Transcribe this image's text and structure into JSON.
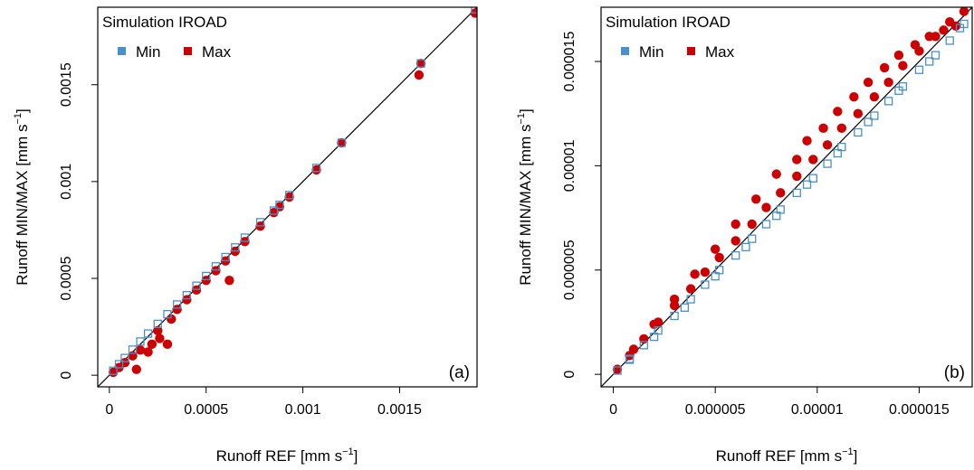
{
  "colors": {
    "min": "#4A90C8",
    "max": "#CC0000",
    "line": "#000000",
    "frame": "#000000"
  },
  "chart_data": [
    {
      "type": "scatter",
      "panel_label": "(a)",
      "legend": {
        "title": "Simulation IROAD",
        "items": [
          "Min",
          "Max"
        ],
        "placement": "top-left"
      },
      "xlabel": "Runoff REF [mm s",
      "ylabel": "Runoff MIN/MAX [mm s",
      "unit_exponent": "−1",
      "xlim": [
        -6e-05,
        0.0019
      ],
      "ylim": [
        -6e-05,
        0.0019
      ],
      "xticks": [
        {
          "value": 0,
          "label": "0"
        },
        {
          "value": 0.0005,
          "label": "0.0005"
        },
        {
          "value": 0.001,
          "label": "0.001"
        },
        {
          "value": 0.0015,
          "label": "0.0015"
        }
      ],
      "yticks": [
        {
          "value": 0,
          "label": "0"
        },
        {
          "value": 0.0005,
          "label": "0.0005"
        },
        {
          "value": 0.001,
          "label": "0.001"
        },
        {
          "value": 0.0015,
          "label": "0.0015"
        }
      ],
      "identity_line": true,
      "series": [
        {
          "name": "Min",
          "x": [
            2e-05,
            5e-05,
            8e-05,
            0.00012,
            0.00016,
            0.0002,
            0.00025,
            0.0003,
            0.00035,
            0.0004,
            0.00045,
            0.0005,
            0.00055,
            0.0006,
            0.00065,
            0.0007,
            0.00078,
            0.00085,
            0.00088,
            0.00093,
            0.00107,
            0.0012,
            0.00161,
            0.00189
          ],
          "y": [
            2.3e-05,
            5.7e-05,
            8.9e-05,
            0.000132,
            0.000174,
            0.000215,
            0.000265,
            0.000315,
            0.000365,
            0.000413,
            0.000462,
            0.000512,
            0.000562,
            0.00061,
            0.00066,
            0.00071,
            0.00079,
            0.00085,
            0.00088,
            0.00093,
            0.00107,
            0.0012,
            0.00161,
            0.00189
          ]
        },
        {
          "name": "Max",
          "x": [
            2e-05,
            5e-05,
            8e-05,
            0.00012,
            0.00014,
            0.00016,
            0.0002,
            0.00022,
            0.00025,
            0.00026,
            0.0003,
            0.00032,
            0.00035,
            0.0004,
            0.00045,
            0.0005,
            0.00055,
            0.0006,
            0.00062,
            0.00065,
            0.0007,
            0.00078,
            0.00085,
            0.00088,
            0.00093,
            0.00107,
            0.0012,
            0.0016,
            0.00161,
            0.00189
          ],
          "y": [
            1.5e-05,
            4e-05,
            6.5e-05,
            0.0001,
            3e-05,
            0.00013,
            0.00012,
            0.00016,
            0.00023,
            0.00019,
            0.00016,
            0.00029,
            0.00034,
            0.00039,
            0.00044,
            0.00049,
            0.00054,
            0.00059,
            0.00049,
            0.00064,
            0.00069,
            0.00077,
            0.00084,
            0.00087,
            0.00092,
            0.00106,
            0.0012,
            0.00155,
            0.00161,
            0.00187
          ]
        }
      ]
    },
    {
      "type": "scatter",
      "panel_label": "(b)",
      "legend": {
        "title": "Simulation IROAD",
        "items": [
          "Min",
          "Max"
        ],
        "placement": "top-left"
      },
      "xlabel": "Runoff REF [mm s",
      "ylabel": "Runoff MIN/MAX [mm s",
      "unit_exponent": "−1",
      "xlim": [
        -6e-07,
        1.76e-05
      ],
      "ylim": [
        -6e-07,
        1.76e-05
      ],
      "xticks": [
        {
          "value": 0,
          "label": "0"
        },
        {
          "value": 5e-06,
          "label": "0.000005"
        },
        {
          "value": 1e-05,
          "label": "0.00001"
        },
        {
          "value": 1.5e-05,
          "label": "0.000015"
        }
      ],
      "yticks": [
        {
          "value": 0,
          "label": "0"
        },
        {
          "value": 5e-06,
          "label": "0.000005"
        },
        {
          "value": 1e-05,
          "label": "0.00001"
        },
        {
          "value": 1.5e-05,
          "label": "0.000015"
        }
      ],
      "identity_line": true,
      "series": [
        {
          "name": "Min",
          "x": [
            2e-07,
            8e-07,
            1.5e-06,
            2.2e-06,
            3e-06,
            3.8e-06,
            4.5e-06,
            5.2e-06,
            6e-06,
            6.8e-06,
            7.5e-06,
            8.2e-06,
            9e-06,
            9.8e-06,
            1.05e-05,
            1.12e-05,
            1.2e-05,
            1.28e-05,
            1.35e-05,
            1.42e-05,
            1.5e-05,
            1.58e-05,
            1.65e-05,
            1.72e-05,
            8e-07,
            2e-06,
            3.5e-06,
            5e-06,
            6.5e-06,
            8e-06,
            9.5e-06,
            1.1e-05,
            1.25e-05,
            1.4e-05,
            1.55e-05,
            1.7e-05
          ],
          "y": [
            1.8e-07,
            7.4e-07,
            1.4e-06,
            2.1e-06,
            2.8e-06,
            3.6e-06,
            4.3e-06,
            5e-06,
            5.7e-06,
            6.5e-06,
            7.2e-06,
            7.9e-06,
            8.7e-06,
            9.4e-06,
            1.01e-05,
            1.09e-05,
            1.16e-05,
            1.24e-05,
            1.31e-05,
            1.38e-05,
            1.46e-05,
            1.53e-05,
            1.6e-05,
            1.68e-05,
            7e-07,
            1.8e-06,
            3.2e-06,
            4.7e-06,
            6.1e-06,
            7.6e-06,
            9.1e-06,
            1.06e-05,
            1.21e-05,
            1.36e-05,
            1.5e-05,
            1.66e-05
          ]
        },
        {
          "name": "Max",
          "x": [
            2e-07,
            8e-07,
            1.5e-06,
            2.2e-06,
            3e-06,
            3.8e-06,
            4.5e-06,
            5.2e-06,
            6e-06,
            6.8e-06,
            7.5e-06,
            8.2e-06,
            9e-06,
            9.8e-06,
            1.05e-05,
            1.12e-05,
            1.2e-05,
            1.28e-05,
            1.35e-05,
            1.42e-05,
            1.5e-05,
            1.58e-05,
            1.65e-05,
            1.72e-05,
            1e-06,
            2e-06,
            3e-06,
            4e-06,
            5e-06,
            6e-06,
            7e-06,
            8e-06,
            9e-06,
            9.5e-06,
            1.03e-05,
            1.1e-05,
            1.18e-05,
            1.25e-05,
            1.33e-05,
            1.4e-05,
            1.48e-05,
            1.55e-05,
            1.62e-05,
            1.68e-05
          ],
          "y": [
            2.4e-07,
            9e-07,
            1.7e-06,
            2.5e-06,
            3.3e-06,
            4.1e-06,
            4.9e-06,
            5.6e-06,
            6.4e-06,
            7.2e-06,
            8e-06,
            8.7e-06,
            9.5e-06,
            1.03e-05,
            1.1e-05,
            1.18e-05,
            1.25e-05,
            1.33e-05,
            1.4e-05,
            1.48e-05,
            1.55e-05,
            1.62e-05,
            1.69e-05,
            1.74e-05,
            1.2e-06,
            2.4e-06,
            3.6e-06,
            4.8e-06,
            6e-06,
            7.2e-06,
            8.4e-06,
            9.6e-06,
            1.03e-05,
            1.12e-05,
            1.18e-05,
            1.26e-05,
            1.33e-05,
            1.4e-05,
            1.47e-05,
            1.53e-05,
            1.58e-05,
            1.62e-05,
            1.65e-05,
            1.67e-05
          ]
        }
      ]
    }
  ]
}
